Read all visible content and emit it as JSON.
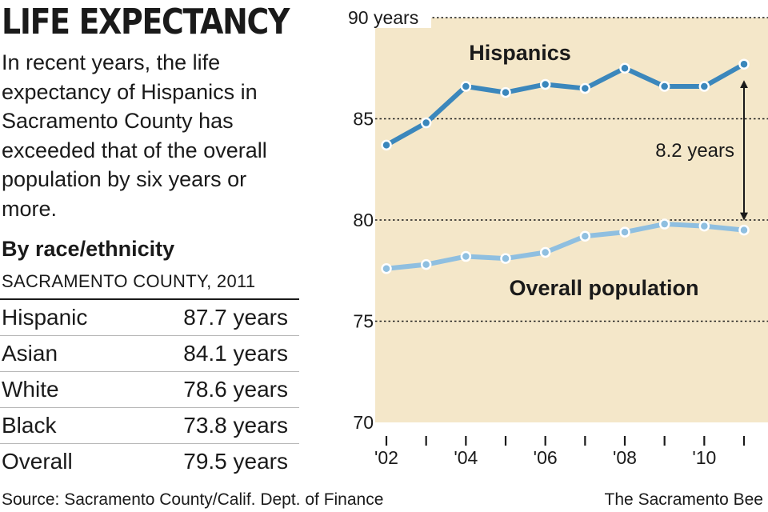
{
  "header": {
    "title": "LIFE EXPECTANCY",
    "intro": "In recent years, the life expectancy of Hispanics in Sacramento County has exceeded that of the overall population by six years or more."
  },
  "table": {
    "heading": "By race/ethnicity",
    "subheading": "SACRAMENTO COUNTY, 2011",
    "rows": [
      {
        "group": "Hispanic",
        "value": "87.7 years"
      },
      {
        "group": "Asian",
        "value": "84.1 years"
      },
      {
        "group": "White",
        "value": "78.6 years"
      },
      {
        "group": "Black",
        "value": "73.8 years"
      },
      {
        "group": "Overall",
        "value": "79.5 years"
      }
    ]
  },
  "chart_data": {
    "type": "line",
    "x": [
      2002,
      2003,
      2004,
      2005,
      2006,
      2007,
      2008,
      2009,
      2010,
      2011
    ],
    "xticks": [
      2002,
      2003,
      2004,
      2005,
      2006,
      2007,
      2008,
      2009,
      2010,
      2011
    ],
    "xtick_labels": [
      "'02",
      "",
      "'04",
      "",
      "'06",
      "",
      "'08",
      "",
      "'10",
      ""
    ],
    "ylim": [
      70,
      90
    ],
    "yticks": [
      70,
      75,
      80,
      85,
      90
    ],
    "ytick_labels": [
      "70",
      "75",
      "80",
      "85",
      "90 years"
    ],
    "grid": true,
    "series": [
      {
        "name": "Hispanics",
        "color": "#3b87bc",
        "values": [
          83.7,
          84.8,
          86.6,
          86.3,
          86.7,
          86.5,
          87.5,
          86.6,
          86.6,
          87.7
        ]
      },
      {
        "name": "Overall population",
        "color": "#8fbfe0",
        "values": [
          77.6,
          77.8,
          78.2,
          78.1,
          78.4,
          79.2,
          79.4,
          79.8,
          79.7,
          79.5
        ]
      }
    ],
    "annotation": {
      "text": "8.2 years",
      "x": 2011,
      "from": 79.5,
      "to": 87.7
    },
    "background_color": "#f4e7c9",
    "grid_color": "#1a1a1a"
  },
  "footer": {
    "source": "Source: Sacramento County/Calif. Dept. of Finance",
    "credit": "The Sacramento Bee"
  }
}
